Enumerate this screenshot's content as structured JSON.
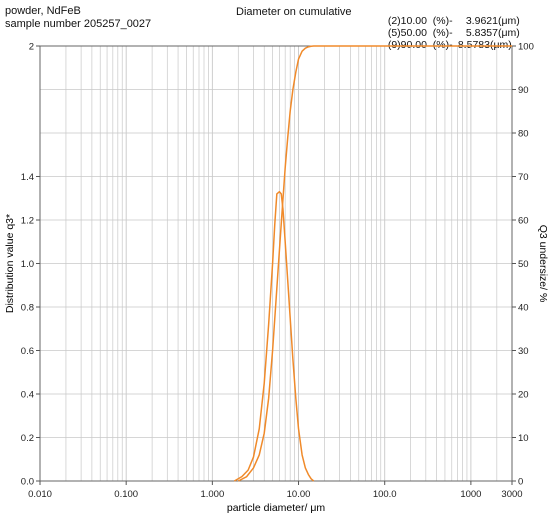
{
  "header": {
    "material": "powder, NdFeB",
    "sample": "sample number 205257_0027",
    "diameter_title": "Diameter on cumulative",
    "diameters": [
      {
        "label": "(2)10.00  (%)-",
        "value": "3.9621(μm)"
      },
      {
        "label": "(5)50.00  (%)-",
        "value": "5.8357(μm)"
      },
      {
        "label": "(9)90.00  (%)-",
        "value": "8.5783(μm)"
      }
    ]
  },
  "chart_data": {
    "type": "line",
    "xlabel": "particle diameter/ μm",
    "ylabel_left": "Distribution value q3*",
    "ylabel_right": "Q3 undersize/ %",
    "x_scale": "log",
    "xlim": [
      0.01,
      3000
    ],
    "x_ticks": [
      0.01,
      0.1,
      1,
      10,
      100,
      1000,
      3000
    ],
    "x_tick_labels": [
      "0.010",
      "0.100",
      "1.000",
      "10.00",
      "100.0",
      "1000",
      "3000"
    ],
    "ylim_left": [
      0,
      2
    ],
    "y_ticks_left": [
      0,
      0.2,
      0.4,
      0.6,
      0.8,
      1.0,
      1.2,
      1.4,
      2
    ],
    "y_tick_labels_left": [
      "0.0",
      "0.2",
      "0.4",
      "0.6",
      "0.8",
      "1.0",
      "1.2",
      "1.4",
      "2"
    ],
    "ylim_right": [
      0,
      100
    ],
    "y_ticks_right": [
      0,
      10,
      20,
      30,
      40,
      50,
      60,
      70,
      80,
      90,
      100
    ],
    "y_tick_labels_right": [
      "0",
      "10",
      "20",
      "30",
      "40",
      "50",
      "60",
      "70",
      "80",
      "90",
      "100"
    ],
    "grid": true,
    "line_color": "#f08a2a",
    "grid_color": "#c8c8c8",
    "series": [
      {
        "axis": "left",
        "x": [
          1.8,
          2.2,
          2.6,
          3.0,
          3.5,
          4.0,
          4.5,
          5.0,
          5.3,
          5.6,
          6.0,
          6.3,
          6.6,
          7.0,
          7.5,
          8.0,
          8.6,
          9.3,
          10.0,
          11.0,
          12.0,
          13.0,
          14.0,
          15.0
        ],
        "y": [
          0.0,
          0.02,
          0.05,
          0.11,
          0.24,
          0.45,
          0.72,
          1.0,
          1.18,
          1.32,
          1.33,
          1.32,
          1.25,
          1.1,
          0.92,
          0.75,
          0.56,
          0.38,
          0.24,
          0.12,
          0.06,
          0.03,
          0.01,
          0.0
        ]
      },
      {
        "axis": "right",
        "x": [
          2.0,
          2.5,
          3.0,
          3.5,
          4.0,
          4.5,
          5.0,
          5.5,
          6.0,
          6.5,
          7.0,
          7.5,
          8.0,
          8.6,
          9.3,
          10.0,
          11.0,
          12.0,
          13.0,
          14.0,
          15.0,
          3000
        ],
        "y": [
          0,
          1,
          3,
          6,
          11,
          19,
          30,
          42,
          53,
          63,
          72,
          79,
          85,
          90,
          94,
          97,
          98.8,
          99.5,
          99.8,
          99.95,
          100,
          100
        ]
      }
    ]
  }
}
